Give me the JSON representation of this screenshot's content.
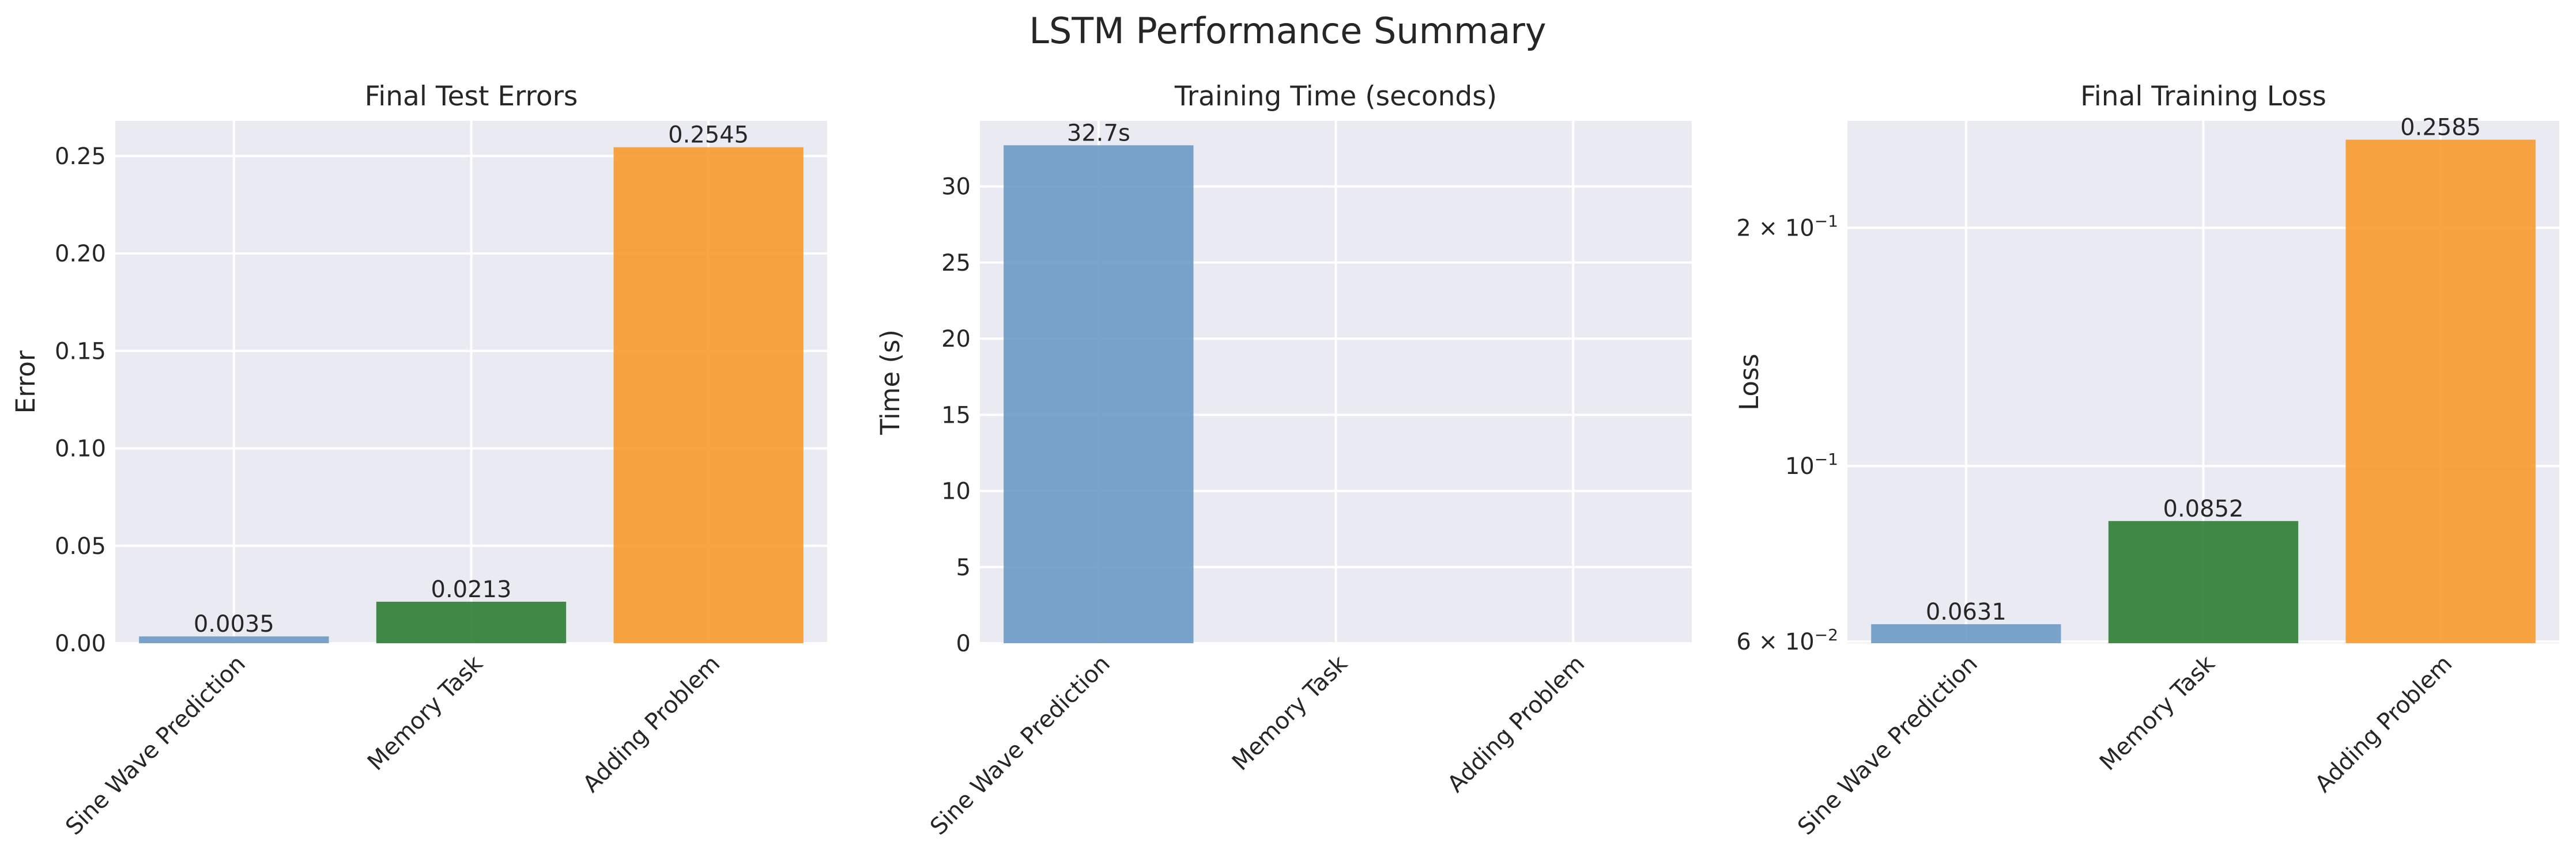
{
  "figure": {
    "title": "LSTM Performance Summary"
  },
  "chart_data": [
    {
      "type": "bar",
      "title": "Final Test Errors",
      "xlabel": "",
      "ylabel": "Error",
      "scale": "linear",
      "ylim": [
        0,
        0.268
      ],
      "grid": true,
      "categories": [
        "Sine Wave Prediction",
        "Memory Task",
        "Adding Problem"
      ],
      "values": [
        0.0035,
        0.0213,
        0.2545
      ],
      "value_labels": [
        "0.0035",
        "0.0213",
        "0.2545"
      ],
      "yticks": [
        0,
        0.05,
        0.1,
        0.15,
        0.2,
        0.25
      ],
      "ytick_labels": [
        "0.00",
        "0.05",
        "0.10",
        "0.15",
        "0.20",
        "0.25"
      ],
      "colors": [
        "#6b9ac4",
        "#2e7d32",
        "#f79a2e"
      ]
    },
    {
      "type": "bar",
      "title": "Training Time (seconds)",
      "xlabel": "",
      "ylabel": "Time (s)",
      "scale": "linear",
      "ylim": [
        0,
        34.3
      ],
      "grid": true,
      "categories": [
        "Sine Wave Prediction",
        "Memory Task",
        "Adding Problem"
      ],
      "values": [
        32.7,
        0,
        0
      ],
      "value_labels": [
        "32.7s",
        "",
        ""
      ],
      "yticks": [
        0,
        5,
        10,
        15,
        20,
        25,
        30
      ],
      "ytick_labels": [
        "0",
        "5",
        "10",
        "15",
        "20",
        "25",
        "30"
      ],
      "colors": [
        "#6b9ac4",
        "#2e7d32",
        "#f79a2e"
      ]
    },
    {
      "type": "bar",
      "title": "Final Training Loss",
      "xlabel": "",
      "ylabel": "Loss",
      "scale": "log",
      "ylim": [
        0.0597,
        0.273
      ],
      "grid": true,
      "categories": [
        "Sine Wave Prediction",
        "Memory Task",
        "Adding Problem"
      ],
      "values": [
        0.0631,
        0.0852,
        0.2585
      ],
      "value_labels": [
        "0.0631",
        "0.0852",
        "0.2585"
      ],
      "yticks": [
        0.06,
        0.1,
        0.2
      ],
      "ytick_labels": [
        {
          "base": "6 × 10",
          "exp": "−2"
        },
        {
          "base": "10",
          "exp": "−1"
        },
        {
          "base": "2 × 10",
          "exp": "−1"
        }
      ],
      "colors": [
        "#6b9ac4",
        "#2e7d32",
        "#f79a2e"
      ]
    }
  ]
}
